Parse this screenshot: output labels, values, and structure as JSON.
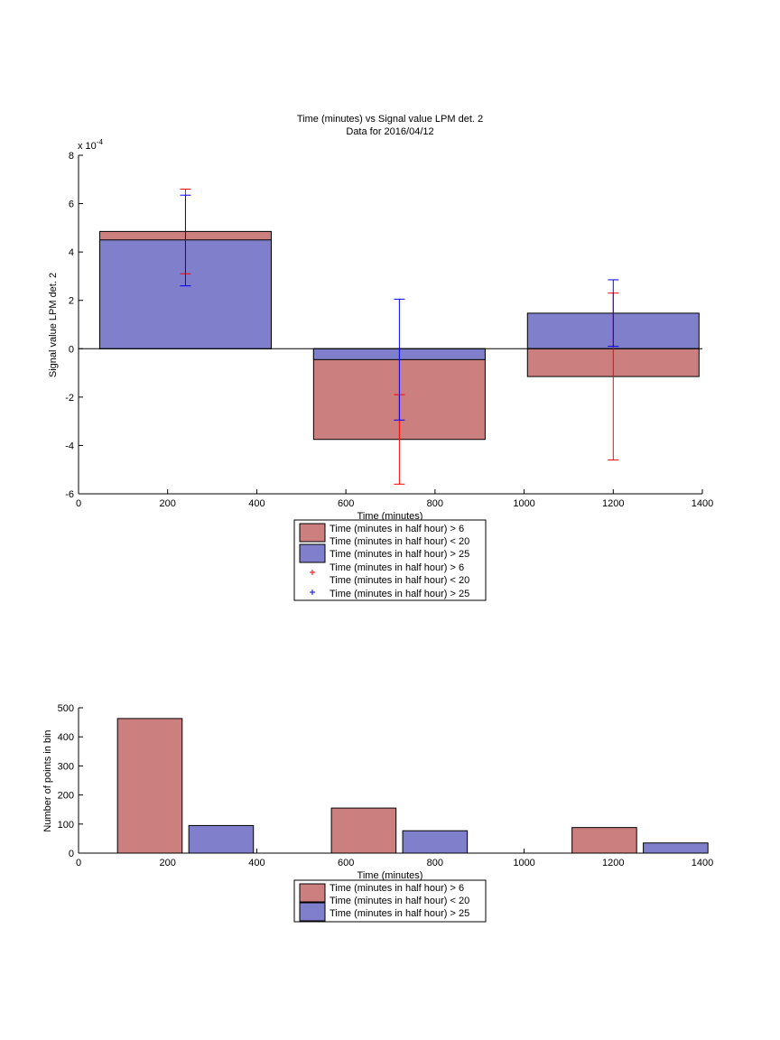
{
  "chart_data": [
    {
      "type": "bar",
      "title": "Time (minutes) vs Signal value LPM det. 2",
      "subtitle": "Data for 2016/04/12",
      "xlabel": "Time (minutes)",
      "ylabel": "Signal value LPM det. 2",
      "exponent_label": "x 10",
      "exponent_power": "-4",
      "xlim": [
        0,
        1400
      ],
      "ylim": [
        -6,
        8
      ],
      "xticks": [
        "0",
        "200",
        "400",
        "600",
        "800",
        "1000",
        "1200",
        "1400"
      ],
      "yticks": [
        "-6",
        "-4",
        "-2",
        "0",
        "2",
        "4",
        "6",
        "8"
      ],
      "legend_placement": "below",
      "legend": [
        {
          "label": "Time (minutes in half hour) > 6",
          "label2": "Time (minutes in half hour) < 20",
          "kind": "bar",
          "color": "#cc7f7f"
        },
        {
          "label": "Time (minutes in half hour) > 25",
          "label2": "",
          "kind": "bar",
          "color": "#7f7fcc"
        },
        {
          "label": "Time (minutes in half hour) > 6",
          "label2": "Time (minutes in half hour) < 20",
          "kind": "marker",
          "color": "#ff0000"
        },
        {
          "label": "Time (minutes in half hour) > 25",
          "label2": "",
          "kind": "marker",
          "color": "#0000ff"
        }
      ],
      "x": [
        240,
        720,
        1200
      ],
      "bar_width": 385,
      "series": [
        {
          "values": [
            4.85,
            -3.75,
            -1.15
          ],
          "err_low": [
            3.1,
            -5.6,
            -4.6
          ],
          "err_high": [
            6.6,
            -1.9,
            2.3
          ],
          "color": "#cc7f7f",
          "err_color": "#ff0000"
        },
        {
          "values": [
            4.5,
            -0.45,
            1.47
          ],
          "err_low": [
            2.6,
            -2.95,
            0.1
          ],
          "err_high": [
            6.35,
            2.05,
            2.85
          ],
          "color": "#7f7fcc",
          "err_color": "#0000ff"
        }
      ]
    },
    {
      "type": "bar",
      "xlabel": "Time (minutes)",
      "ylabel": "Number of points in bin",
      "xlim": [
        0,
        1400
      ],
      "ylim": [
        0,
        500
      ],
      "xticks": [
        "0",
        "200",
        "400",
        "600",
        "800",
        "1000",
        "1200",
        "1400"
      ],
      "yticks": [
        "0",
        "100",
        "200",
        "300",
        "400",
        "500"
      ],
      "legend_placement": "below",
      "legend": [
        {
          "label": "Time (minutes in half hour) > 6",
          "label2": "Time (minutes in half hour) < 20",
          "kind": "bar",
          "color": "#cc7f7f"
        },
        {
          "label": "Time (minutes in half hour) > 25",
          "label2": "",
          "kind": "bar",
          "color": "#7f7fcc"
        }
      ],
      "bar_width": 145,
      "series": [
        {
          "x": [
            160,
            640,
            1180
          ],
          "values": [
            463,
            155,
            88
          ],
          "color": "#cc7f7f"
        },
        {
          "x": [
            320,
            800,
            1340
          ],
          "values": [
            95,
            77,
            35
          ],
          "color": "#7f7fcc"
        }
      ]
    }
  ]
}
